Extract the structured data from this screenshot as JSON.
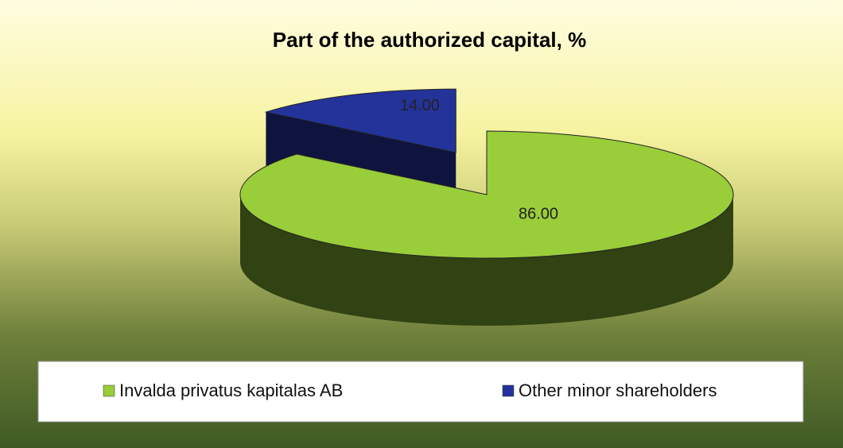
{
  "chart_data": {
    "type": "pie",
    "title": "Part of the authorized capital, %",
    "categories": [
      "Invalda privatus kapitalas AB",
      "Other minor shareholders"
    ],
    "values": [
      86,
      14
    ],
    "value_labels": [
      "86.00",
      "14.00"
    ],
    "colors": [
      "#9acd3a",
      "#24339a"
    ],
    "legend": "bottom"
  }
}
